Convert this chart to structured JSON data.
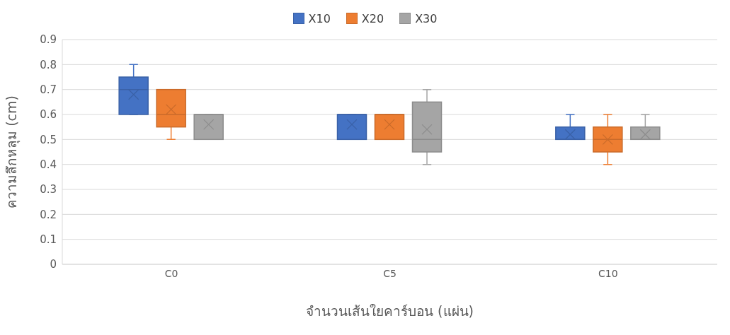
{
  "chart_data": {
    "type": "box",
    "categories": [
      "C0",
      "C5",
      "C10"
    ],
    "xlabel": "จำนวนเส้นใยคาร์บอน (แผ่น)",
    "ylabel": "ความลึกหลุม (cm)",
    "ylim": [
      0,
      0.9
    ],
    "yticks": [
      0,
      0.1,
      0.2,
      0.3,
      0.4,
      0.5,
      0.6,
      0.7,
      0.8,
      0.9
    ],
    "grid": "y",
    "legend": "top",
    "series": [
      {
        "name": "X10",
        "color": "#4472c4",
        "boxes": [
          {
            "low": 0.6,
            "q1": 0.6,
            "median": 0.7,
            "q3": 0.75,
            "high": 0.8,
            "mean": 0.68
          },
          {
            "low": 0.5,
            "q1": 0.5,
            "median": 0.6,
            "q3": 0.6,
            "high": 0.6,
            "mean": 0.56
          },
          {
            "low": 0.5,
            "q1": 0.5,
            "median": 0.5,
            "q3": 0.55,
            "high": 0.6,
            "mean": 0.52
          }
        ]
      },
      {
        "name": "X20",
        "color": "#ed7d31",
        "boxes": [
          {
            "low": 0.5,
            "q1": 0.55,
            "median": 0.6,
            "q3": 0.7,
            "high": 0.7,
            "mean": 0.62
          },
          {
            "low": 0.5,
            "q1": 0.5,
            "median": 0.6,
            "q3": 0.6,
            "high": 0.6,
            "mean": 0.56
          },
          {
            "low": 0.4,
            "q1": 0.45,
            "median": 0.5,
            "q3": 0.55,
            "high": 0.6,
            "mean": 0.5
          }
        ]
      },
      {
        "name": "X30",
        "color": "#a5a5a5",
        "boxes": [
          {
            "low": 0.5,
            "q1": 0.5,
            "median": 0.6,
            "q3": 0.6,
            "high": 0.6,
            "mean": 0.56
          },
          {
            "low": 0.4,
            "q1": 0.45,
            "median": 0.5,
            "q3": 0.65,
            "high": 0.7,
            "mean": 0.54
          },
          {
            "low": 0.5,
            "q1": 0.5,
            "median": 0.5,
            "q3": 0.55,
            "high": 0.6,
            "mean": 0.52
          }
        ]
      }
    ]
  }
}
